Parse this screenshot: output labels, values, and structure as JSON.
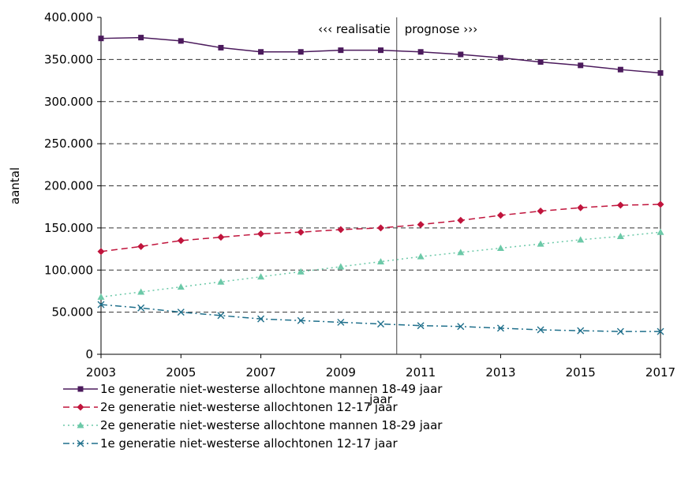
{
  "chart_data": {
    "type": "line",
    "xlabel": "jaar",
    "ylabel": "aantal",
    "ylim": [
      0,
      400000
    ],
    "xlim": [
      2003,
      2017
    ],
    "y_ticks": [
      "0",
      "50.000",
      "100.000",
      "150.000",
      "200.000",
      "250.000",
      "300.000",
      "350.000",
      "400.000"
    ],
    "x_ticks": [
      "2003",
      "2005",
      "2007",
      "2009",
      "2011",
      "2013",
      "2015",
      "2017"
    ],
    "grid": "horizontal dashed",
    "divider_x": 2010.4,
    "annotations": {
      "left": "‹‹‹ realisatie",
      "right": "prognose ›››"
    },
    "legend_position": "bottom",
    "x": [
      2003,
      2004,
      2005,
      2006,
      2007,
      2008,
      2009,
      2010,
      2011,
      2012,
      2013,
      2014,
      2015,
      2016,
      2017
    ],
    "series": [
      {
        "name": "1e generatie niet-westerse allochtone mannen 18-49 jaar",
        "color": "#4b1a5c",
        "line": "solid",
        "marker": "square",
        "values": [
          375000,
          376000,
          372000,
          364000,
          359000,
          359000,
          361000,
          361000,
          359000,
          356000,
          352000,
          347000,
          343000,
          338000,
          334000
        ]
      },
      {
        "name": "2e generatie niet-westerse allochtonen 12-17 jaar",
        "color": "#c0143c",
        "line": "dashed",
        "marker": "diamond",
        "values": [
          122000,
          128000,
          135000,
          139000,
          143000,
          145000,
          148000,
          150000,
          154000,
          159000,
          165000,
          170000,
          174000,
          177000,
          178000
        ]
      },
      {
        "name": "2e generatie niet-westerse allochtone mannen 18-29 jaar",
        "color": "#6cc9a8",
        "line": "dotted",
        "marker": "triangle",
        "values": [
          68000,
          74000,
          80000,
          86000,
          92000,
          98000,
          104000,
          110000,
          116000,
          121000,
          126000,
          131000,
          136000,
          140000,
          145000
        ]
      },
      {
        "name": "1e generatie niet-westerse allochtonen 12-17 jaar",
        "color": "#1f6f8b",
        "line": "dashdot",
        "marker": "x",
        "values": [
          59000,
          55000,
          50000,
          46000,
          42000,
          40000,
          38000,
          36000,
          34000,
          33000,
          31000,
          29000,
          28000,
          27000,
          27000
        ]
      }
    ]
  }
}
